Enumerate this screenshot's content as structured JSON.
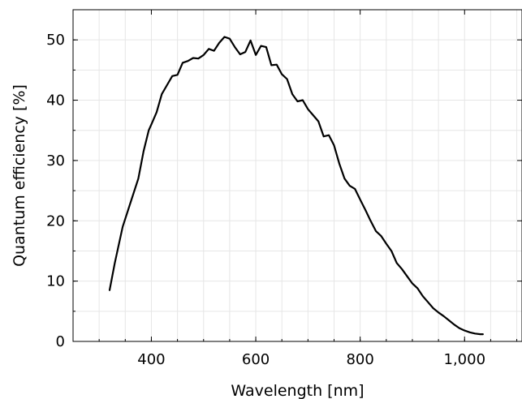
{
  "chart_data": {
    "type": "line",
    "xlabel": "Wavelength [nm]",
    "ylabel": "Quantum efficiency [%]",
    "xlim": [
      250,
      1110
    ],
    "ylim": [
      0,
      55
    ],
    "grid": true,
    "x_ticks": [
      400,
      600,
      800,
      1000
    ],
    "x_tick_labels": [
      "400",
      "600",
      "800",
      "1,000"
    ],
    "y_ticks": [
      0,
      10,
      20,
      30,
      40,
      50
    ],
    "y_tick_labels": [
      "0",
      "10",
      "20",
      "30",
      "40",
      "50"
    ],
    "line_color": "#000000",
    "series": [
      {
        "x": [
          320,
          330,
          345,
          360,
          375,
          385,
          395,
          400,
          410,
          420,
          430,
          440,
          450,
          460,
          470,
          480,
          490,
          500,
          510,
          520,
          530,
          540,
          550,
          560,
          570,
          580,
          590,
          600,
          610,
          620,
          630,
          640,
          650,
          660,
          670,
          680,
          690,
          700,
          710,
          720,
          730,
          740,
          750,
          760,
          770,
          780,
          790,
          800,
          810,
          820,
          830,
          840,
          850,
          860,
          870,
          880,
          890,
          900,
          910,
          920,
          930,
          940,
          950,
          960,
          970,
          980,
          990,
          1000,
          1010,
          1020,
          1030,
          1035
        ],
        "y": [
          8.5,
          13,
          19,
          23,
          27,
          31.5,
          35,
          36,
          38,
          41,
          42.5,
          44,
          44.2,
          46.2,
          46.5,
          47,
          46.9,
          47.5,
          48.5,
          48.2,
          49.5,
          50.5,
          50.2,
          48.8,
          47.6,
          48.0,
          49.9,
          47.5,
          49.0,
          48.8,
          45.8,
          45.9,
          44.3,
          43.5,
          41.0,
          39.8,
          40.0,
          38.5,
          37.5,
          36.5,
          34.0,
          34.2,
          32.5,
          29.5,
          27.0,
          25.8,
          25.3,
          23.5,
          21.8,
          20.0,
          18.3,
          17.5,
          16.2,
          15.0,
          13.0,
          12.0,
          10.8,
          9.6,
          8.8,
          7.5,
          6.5,
          5.5,
          4.8,
          4.2,
          3.5,
          2.8,
          2.2,
          1.8,
          1.5,
          1.3,
          1.2,
          1.2
        ]
      }
    ]
  }
}
